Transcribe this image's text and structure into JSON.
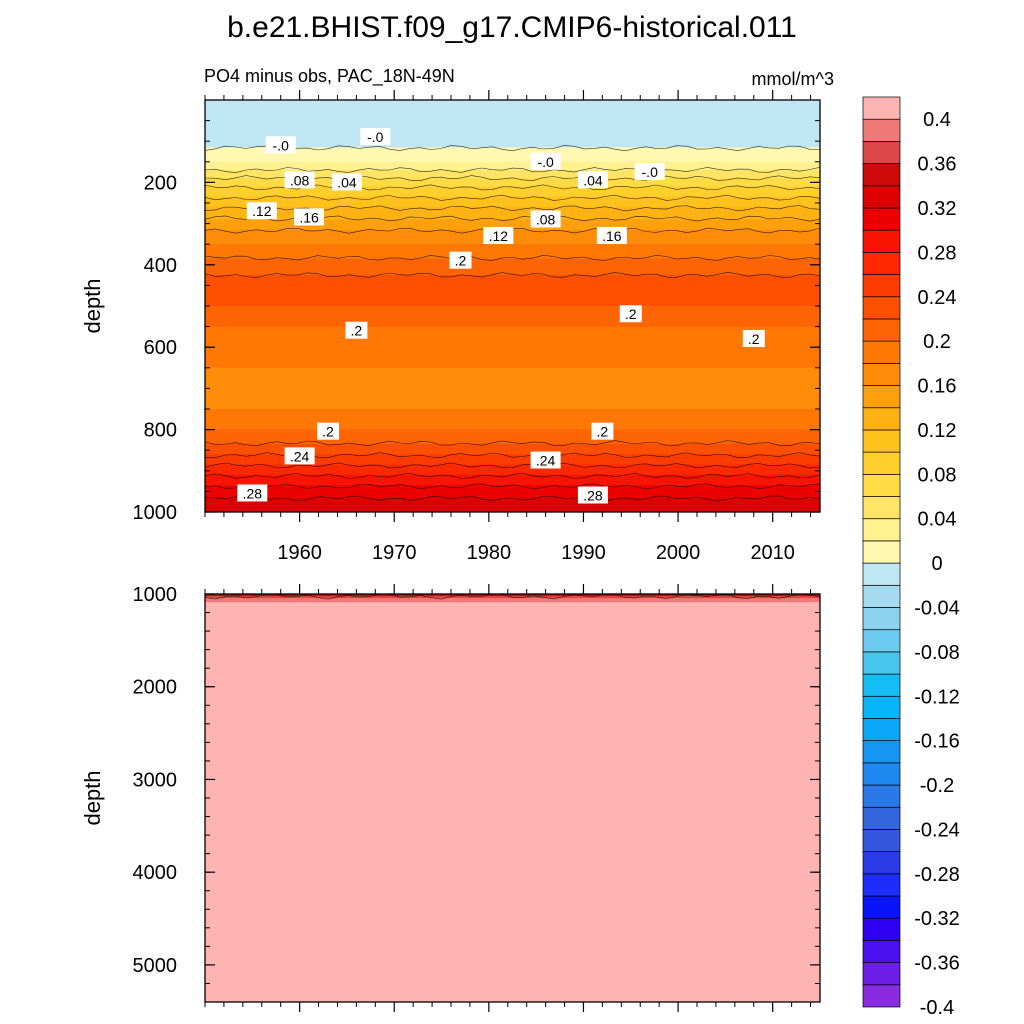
{
  "chart_data": {
    "type": "heatmap",
    "title": "b.e21.BHIST.f09_g17.CMIP6-historical.011",
    "subtitle": "PO4 minus obs, PAC_18N-49N",
    "units": "mmol/m^3",
    "upper_panel": {
      "ylabel": "depth",
      "ylim": [
        0,
        1000
      ],
      "yticks": [
        200,
        400,
        600,
        800,
        1000
      ],
      "xlim": [
        1950,
        2015
      ],
      "xticks": [
        1960,
        1970,
        1980,
        1990,
        2000,
        2010
      ],
      "depth_profile": [
        {
          "depth": 0,
          "value": -0.02
        },
        {
          "depth": 100,
          "value": -0.01
        },
        {
          "depth": 150,
          "value": 0.02
        },
        {
          "depth": 200,
          "value": 0.07
        },
        {
          "depth": 250,
          "value": 0.11
        },
        {
          "depth": 300,
          "value": 0.15
        },
        {
          "depth": 350,
          "value": 0.18
        },
        {
          "depth": 400,
          "value": 0.21
        },
        {
          "depth": 450,
          "value": 0.23
        },
        {
          "depth": 500,
          "value": 0.22
        },
        {
          "depth": 550,
          "value": 0.2
        },
        {
          "depth": 600,
          "value": 0.19
        },
        {
          "depth": 650,
          "value": 0.18
        },
        {
          "depth": 700,
          "value": 0.17
        },
        {
          "depth": 750,
          "value": 0.18
        },
        {
          "depth": 800,
          "value": 0.2
        },
        {
          "depth": 850,
          "value": 0.23
        },
        {
          "depth": 900,
          "value": 0.27
        },
        {
          "depth": 950,
          "value": 0.31
        },
        {
          "depth": 1000,
          "value": 0.34
        }
      ],
      "contour_labels": [
        {
          "text": "-.0",
          "year": 1958,
          "depth": 110
        },
        {
          "text": "-.0",
          "year": 1968,
          "depth": 90
        },
        {
          "text": "-.0",
          "year": 1986,
          "depth": 150
        },
        {
          "text": "-.0",
          "year": 1997,
          "depth": 175
        },
        {
          "text": ".08",
          "year": 1960,
          "depth": 195
        },
        {
          "text": ".04",
          "year": 1965,
          "depth": 200
        },
        {
          "text": ".04",
          "year": 1991,
          "depth": 195
        },
        {
          "text": ".12",
          "year": 1956,
          "depth": 270
        },
        {
          "text": ".16",
          "year": 1961,
          "depth": 285
        },
        {
          "text": ".12",
          "year": 1981,
          "depth": 330
        },
        {
          "text": ".08",
          "year": 1986,
          "depth": 290
        },
        {
          "text": ".16",
          "year": 1993,
          "depth": 330
        },
        {
          "text": ".2",
          "year": 1977,
          "depth": 390
        },
        {
          "text": ".2",
          "year": 1966,
          "depth": 560
        },
        {
          "text": ".2",
          "year": 1995,
          "depth": 520
        },
        {
          "text": ".2",
          "year": 2008,
          "depth": 580
        },
        {
          "text": ".2",
          "year": 1963,
          "depth": 805
        },
        {
          "text": ".2",
          "year": 1992,
          "depth": 805
        },
        {
          "text": ".24",
          "year": 1960,
          "depth": 865
        },
        {
          "text": ".24",
          "year": 1986,
          "depth": 875
        },
        {
          "text": ".28",
          "year": 1955,
          "depth": 955
        },
        {
          "text": ".28",
          "year": 1991,
          "depth": 960
        }
      ]
    },
    "lower_panel": {
      "ylabel": "depth",
      "ylim": [
        1000,
        5400
      ],
      "yticks": [
        1000,
        2000,
        3000,
        4000,
        5000
      ],
      "depth_profile": [
        {
          "depth": 1000,
          "value": 0.34
        },
        {
          "depth": 1050,
          "value": 0.38
        },
        {
          "depth": 1100,
          "value": 0.41
        },
        {
          "depth": 5400,
          "value": 0.42
        }
      ]
    },
    "colorbar": {
      "levels": [
        -0.4,
        -0.38,
        -0.36,
        -0.34,
        -0.32,
        -0.3,
        -0.28,
        -0.26,
        -0.24,
        -0.22,
        -0.2,
        -0.18,
        -0.16,
        -0.14,
        -0.12,
        -0.1,
        -0.08,
        -0.06,
        -0.04,
        -0.02,
        0,
        0.02,
        0.04,
        0.06,
        0.08,
        0.1,
        0.12,
        0.14,
        0.16,
        0.18,
        0.2,
        0.22,
        0.24,
        0.26,
        0.28,
        0.3,
        0.32,
        0.34,
        0.36,
        0.38,
        0.4
      ],
      "labels": [
        "0.4",
        "0.36",
        "0.32",
        "0.28",
        "0.24",
        "0.2",
        "0.16",
        "0.12",
        "0.08",
        "0.04",
        "0",
        "-0.04",
        "-0.08",
        "-0.12",
        "-0.16",
        "-0.2",
        "-0.24",
        "-0.28",
        "-0.32",
        "-0.36",
        "-0.4"
      ],
      "colors": [
        "#8a2be2",
        "#6a1ee8",
        "#4b0ff0",
        "#2f00f5",
        "#0a14f8",
        "#1e2efa",
        "#2b3be8",
        "#3457e0",
        "#3366dd",
        "#2a78e8",
        "#1e88f0",
        "#1496f2",
        "#0aa6f8",
        "#0ab4f8",
        "#14bef5",
        "#46c5ee",
        "#6ccaf0",
        "#8ad2ee",
        "#a4dbf0",
        "#c0e6f3",
        "#fff8b0",
        "#fff090",
        "#ffe566",
        "#ffdb46",
        "#ffcf2c",
        "#ffc11c",
        "#ffb214",
        "#ffa00c",
        "#ff8c08",
        "#ff7806",
        "#ff6404",
        "#ff5000",
        "#ff3c00",
        "#ff2800",
        "#f81400",
        "#ec0000",
        "#dc0000",
        "#cd0a0a",
        "#dc4646",
        "#f07878",
        "#ffb4b4"
      ]
    }
  }
}
